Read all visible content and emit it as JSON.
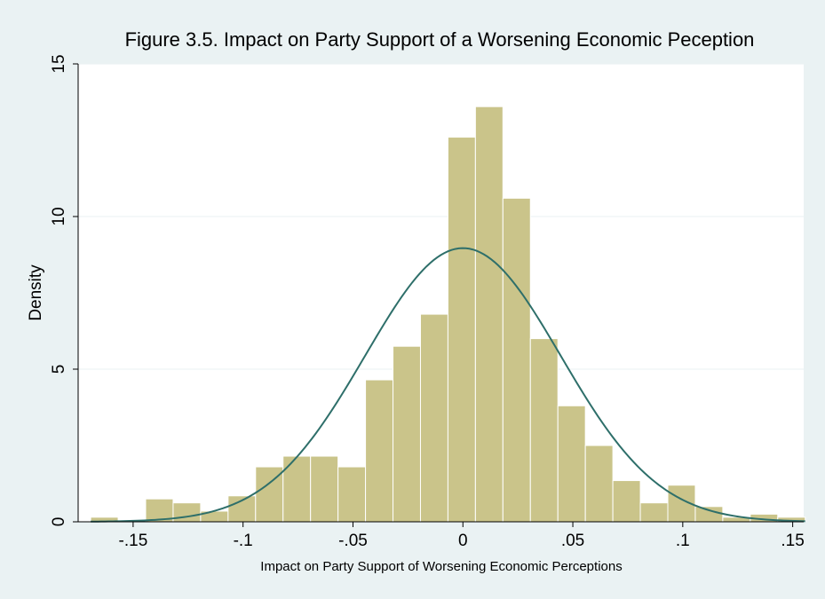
{
  "chart_data": {
    "type": "bar",
    "title": "Figure 3.5. Impact on Party Support of a Worsening Economic Peception",
    "xlabel": "Impact on Party Support of Worsening Economic Perceptions",
    "ylabel": "Density",
    "xlim": [
      -0.175,
      0.155
    ],
    "ylim": [
      0,
      15
    ],
    "x_ticks": [
      {
        "value": -0.15,
        "label": "-.15"
      },
      {
        "value": -0.1,
        "label": "-.1"
      },
      {
        "value": -0.05,
        "label": "-.05"
      },
      {
        "value": 0,
        "label": "0"
      },
      {
        "value": 0.05,
        "label": ".05"
      },
      {
        "value": 0.1,
        "label": ".1"
      },
      {
        "value": 0.15,
        "label": ".15"
      }
    ],
    "y_ticks": [
      {
        "value": 0,
        "label": "0"
      },
      {
        "value": 5,
        "label": "5"
      },
      {
        "value": 10,
        "label": "10"
      },
      {
        "value": 15,
        "label": "15"
      }
    ],
    "grid": true,
    "bin_width": 0.0125,
    "bins": [
      {
        "x0": -0.1693,
        "density": 0.15
      },
      {
        "x0": -0.1568,
        "density": 0
      },
      {
        "x0": -0.1443,
        "density": 0.75
      },
      {
        "x0": -0.1318,
        "density": 0.62
      },
      {
        "x0": -0.1193,
        "density": 0.35
      },
      {
        "x0": -0.1068,
        "density": 0.85
      },
      {
        "x0": -0.0943,
        "density": 1.8
      },
      {
        "x0": -0.0818,
        "density": 2.15
      },
      {
        "x0": -0.0693,
        "density": 2.15
      },
      {
        "x0": -0.0568,
        "density": 1.8
      },
      {
        "x0": -0.0443,
        "density": 4.65
      },
      {
        "x0": -0.0318,
        "density": 5.75
      },
      {
        "x0": -0.0193,
        "density": 6.8
      },
      {
        "x0": -0.0068,
        "density": 12.6
      },
      {
        "x0": 0.0057,
        "density": 13.6
      },
      {
        "x0": 0.0182,
        "density": 10.6
      },
      {
        "x0": 0.0307,
        "density": 6.0
      },
      {
        "x0": 0.0432,
        "density": 3.8
      },
      {
        "x0": 0.0557,
        "density": 2.5
      },
      {
        "x0": 0.0682,
        "density": 1.35
      },
      {
        "x0": 0.0807,
        "density": 0.62
      },
      {
        "x0": 0.0932,
        "density": 1.2
      },
      {
        "x0": 0.1057,
        "density": 0.5
      },
      {
        "x0": 0.1182,
        "density": 0.15
      },
      {
        "x0": 0.1307,
        "density": 0.25
      },
      {
        "x0": 0.1432,
        "density": 0.15
      }
    ],
    "normal_curve": {
      "mean": 0,
      "sd": 0.0445,
      "x_range": [
        -0.1693,
        0.1557
      ],
      "color": "#2e6f6a"
    },
    "bar_color": "#cac48a",
    "background_color": "#eaf2f3",
    "plot_background_color": "#ffffff"
  }
}
